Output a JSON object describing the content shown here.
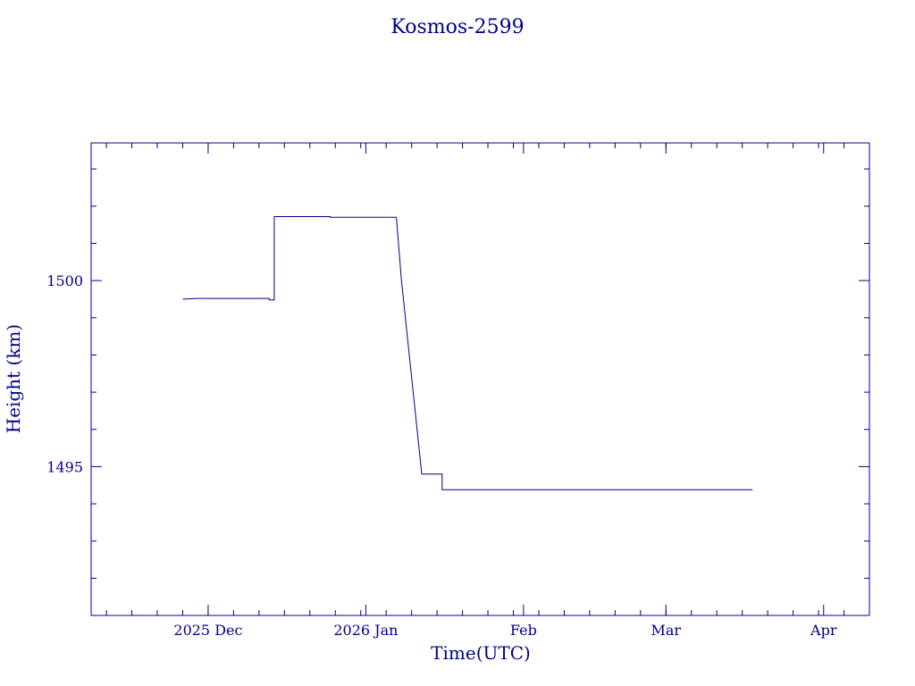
{
  "chart_data": {
    "type": "line",
    "title": "Kosmos-2599",
    "xlabel": "Time(UTC)",
    "ylabel": "Height (km)",
    "x_ticks": [
      {
        "date": "2025-12-01",
        "label": "2025 Dec"
      },
      {
        "date": "2026-01-01",
        "label": "2026 Jan"
      },
      {
        "date": "2026-02-01",
        "label": "Feb"
      },
      {
        "date": "2026-03-01",
        "label": "Mar"
      },
      {
        "date": "2026-04-01",
        "label": "Apr"
      }
    ],
    "y_ticks": [
      {
        "value": 1495,
        "label": "1495"
      },
      {
        "value": 1500,
        "label": "1500"
      }
    ],
    "xlim": [
      "2025-11-08",
      "2026-04-10"
    ],
    "ylim": [
      1491,
      1503.7
    ],
    "grid": false,
    "series": [
      {
        "points": [
          [
            "2025-11-26",
            1499.5
          ],
          [
            "2025-11-29",
            1499.52
          ],
          [
            "2025-12-13",
            1499.52
          ],
          [
            "2025-12-13",
            1499.48
          ],
          [
            "2025-12-14",
            1499.48
          ],
          [
            "2025-12-14",
            1501.4
          ],
          [
            "2025-12-14",
            1501.72
          ],
          [
            "2025-12-25",
            1501.72
          ],
          [
            "2025-12-25",
            1501.7
          ],
          [
            "2026-01-07",
            1501.7
          ],
          [
            "2026-01-08",
            1500.0
          ],
          [
            "2026-01-12",
            1494.8
          ],
          [
            "2026-01-16",
            1494.8
          ],
          [
            "2026-01-16",
            1494.38
          ],
          [
            "2026-03-18",
            1494.38
          ]
        ]
      }
    ],
    "colors": {
      "axis": "#00008b",
      "line": "#00008b"
    }
  }
}
